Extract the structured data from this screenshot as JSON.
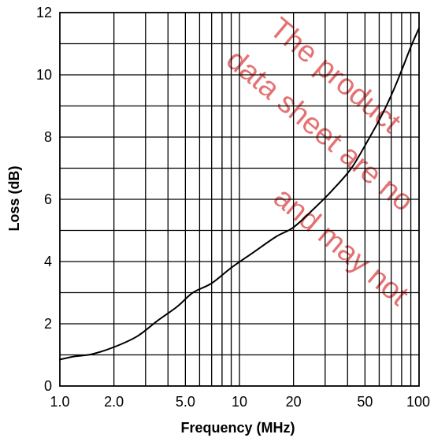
{
  "chart_data": {
    "type": "line",
    "title": "",
    "xlabel": "Frequency (MHz)",
    "ylabel": "Loss (dB)",
    "x_scale": "log",
    "xlim": [
      1,
      100
    ],
    "ylim": [
      0,
      12
    ],
    "grid": true,
    "x_tick_labels": [
      {
        "value": 1,
        "label": "1.0"
      },
      {
        "value": 2,
        "label": "2.0"
      },
      {
        "value": 5,
        "label": "5.0"
      },
      {
        "value": 10,
        "label": "10"
      },
      {
        "value": 20,
        "label": "20"
      },
      {
        "value": 50,
        "label": "50"
      },
      {
        "value": 100,
        "label": "100"
      }
    ],
    "x_gridlines": [
      2,
      3,
      4,
      5,
      6,
      7,
      8,
      9,
      10,
      20,
      30,
      40,
      50,
      60,
      70,
      80,
      90
    ],
    "y_ticks": [
      0,
      2,
      4,
      6,
      8,
      10,
      12
    ],
    "y_tick_labels": [
      "0",
      "2",
      "4",
      "6",
      "8",
      "10",
      "12"
    ],
    "y_gridlines": [
      1,
      2,
      3,
      4,
      5,
      6,
      7,
      8,
      9,
      10,
      11
    ],
    "series": [
      {
        "x": [
          1.0,
          1.2,
          1.5,
          2.0,
          2.7,
          3.5,
          4.5,
          5.5,
          7,
          9,
          12,
          16,
          20,
          26,
          33,
          42,
          52,
          62,
          72,
          82,
          90,
          100
        ],
        "y": [
          0.85,
          0.95,
          1.02,
          1.25,
          1.6,
          2.1,
          2.55,
          3.0,
          3.3,
          3.8,
          4.3,
          4.8,
          5.1,
          5.7,
          6.3,
          7.0,
          7.9,
          8.7,
          9.5,
          10.3,
          10.9,
          11.5
        ]
      }
    ],
    "watermark": [
      "The product",
      "data sheet are no",
      "and may not"
    ]
  },
  "colors": {
    "line": "#000000",
    "grid": "#000000",
    "watermark": "#e05a5a"
  }
}
